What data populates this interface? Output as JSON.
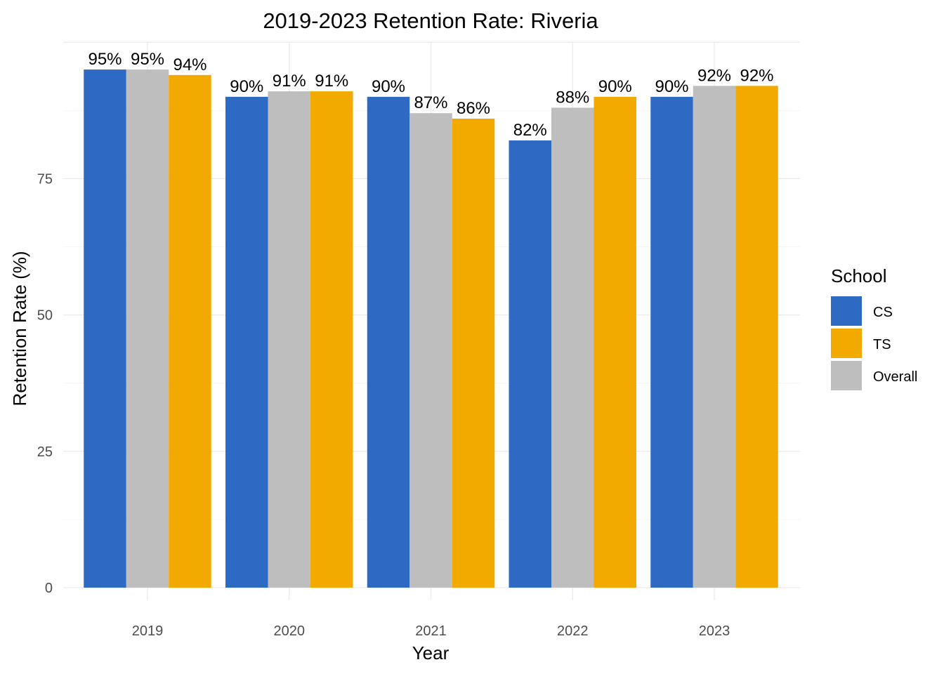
{
  "chart_data": {
    "type": "bar",
    "title": "2019-2023 Retention Rate: Riveria",
    "xlabel": "Year",
    "ylabel": "Retention Rate (%)",
    "categories": [
      "2019",
      "2020",
      "2021",
      "2022",
      "2023"
    ],
    "ylim": [
      0,
      100
    ],
    "yticks": [
      0,
      25,
      50,
      75
    ],
    "grid": true,
    "legend": {
      "title": "School",
      "position": "right",
      "entries": [
        "CS",
        "TS",
        "Overall"
      ]
    },
    "series": [
      {
        "name": "CS",
        "color": "#2E69C4",
        "values": [
          95,
          90,
          90,
          82,
          90
        ],
        "labels": [
          "95%",
          "90%",
          "90%",
          "82%",
          "90%"
        ]
      },
      {
        "name": "Overall",
        "color": "#BEBEBE",
        "values": [
          95,
          91,
          87,
          88,
          92
        ],
        "labels": [
          "95%",
          "91%",
          "87%",
          "88%",
          "92%"
        ]
      },
      {
        "name": "TS",
        "color": "#F2A900",
        "values": [
          94,
          91,
          86,
          90,
          92
        ],
        "labels": [
          "94%",
          "91%",
          "86%",
          "90%",
          "92%"
        ]
      }
    ],
    "bar_order": [
      "CS",
      "Overall",
      "TS"
    ]
  }
}
